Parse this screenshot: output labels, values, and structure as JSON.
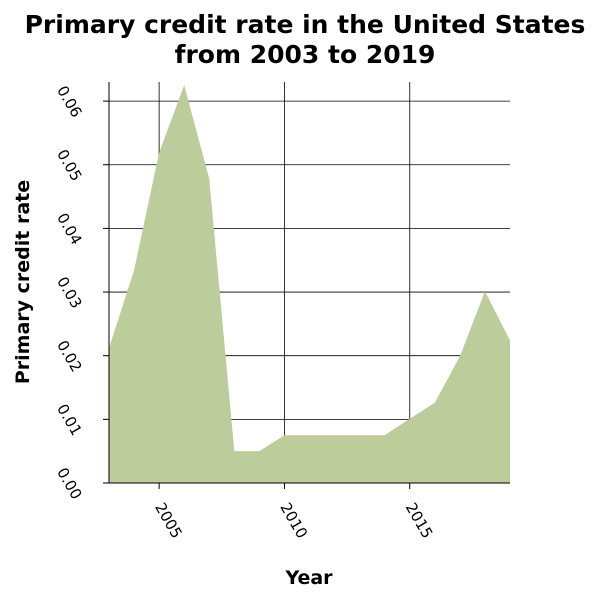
{
  "chart_data": {
    "type": "area",
    "title_line1": "Primary credit rate in the United States",
    "title_line2": "from 2003 to 2019",
    "xlabel": "Year",
    "ylabel": "Primary credit rate",
    "xlim": [
      2003,
      2019
    ],
    "ylim": [
      0,
      0.063
    ],
    "x_ticks": [
      2005,
      2010,
      2015
    ],
    "x_tick_labels": [
      "2005",
      "2010",
      "2015"
    ],
    "y_ticks": [
      0,
      0.01,
      0.02,
      0.03,
      0.04,
      0.05,
      0.06
    ],
    "y_tick_labels": [
      "0.00",
      "0.01",
      "0.02",
      "0.03",
      "0.04",
      "0.05",
      "0.06"
    ],
    "grid": true,
    "fill_color": "#bccc9a",
    "series": [
      {
        "x": [
          2003,
          2004,
          2005,
          2006,
          2007,
          2008,
          2009,
          2010,
          2011,
          2012,
          2013,
          2014,
          2015,
          2016,
          2017,
          2018,
          2019
        ],
        "values": [
          0.0212,
          0.0334,
          0.0519,
          0.0625,
          0.0478,
          0.005,
          0.005,
          0.0075,
          0.0075,
          0.0075,
          0.0075,
          0.0075,
          0.0101,
          0.0126,
          0.0199,
          0.0301,
          0.0224
        ]
      }
    ]
  }
}
